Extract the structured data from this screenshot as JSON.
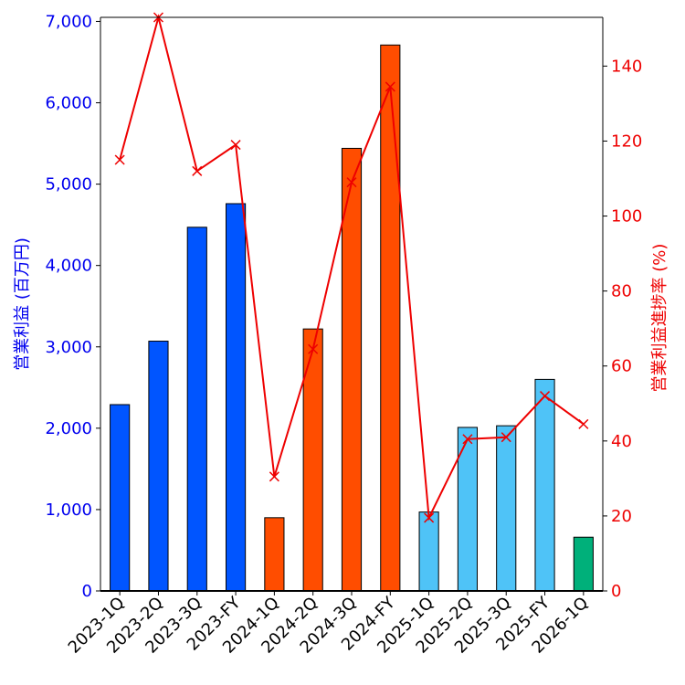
{
  "chart_data": {
    "type": "bar",
    "categories": [
      "2023-1Q",
      "2023-2Q",
      "2023-3Q",
      "2023-FY",
      "2024-1Q",
      "2024-2Q",
      "2024-3Q",
      "2024-FY",
      "2025-1Q",
      "2025-2Q",
      "2025-3Q",
      "2025-FY",
      "2026-1Q"
    ],
    "series": [
      {
        "name": "営業利益 (百万円)",
        "kind": "bar",
        "axis": "left",
        "values": [
          2290,
          3070,
          4470,
          4760,
          900,
          3220,
          5440,
          6710,
          970,
          2010,
          2030,
          2600,
          660
        ],
        "colors": [
          "#0055ff",
          "#0055ff",
          "#0055ff",
          "#0055ff",
          "#ff4d00",
          "#ff4d00",
          "#ff4d00",
          "#ff4d00",
          "#4fc3f7",
          "#4fc3f7",
          "#4fc3f7",
          "#4fc3f7",
          "#00b07a"
        ]
      },
      {
        "name": "営業利益進捗率 (%)",
        "kind": "line",
        "axis": "right",
        "color": "#ee0000",
        "values": [
          115,
          153,
          112,
          119,
          30.5,
          64.5,
          109,
          134.5,
          19.5,
          40.5,
          41,
          52,
          44.5
        ]
      }
    ],
    "ylabel": "営業利益 (百万円)",
    "y2label": "営業利益進捗率 (%)",
    "ylim": [
      0,
      7050
    ],
    "y2lim": [
      0,
      153
    ],
    "yticks": [
      0,
      1000,
      2000,
      3000,
      4000,
      5000,
      6000,
      7000
    ],
    "yticklabels": [
      "0",
      "1,000",
      "2,000",
      "3,000",
      "4,000",
      "5,000",
      "6,000",
      "7,000"
    ],
    "y2ticks": [
      0,
      20,
      40,
      60,
      80,
      100,
      120,
      140
    ],
    "y2ticklabels": [
      "0",
      "20",
      "40",
      "60",
      "80",
      "100",
      "120",
      "140"
    ],
    "left_axis_color": "#0000ee",
    "right_axis_color": "#ee0000"
  }
}
